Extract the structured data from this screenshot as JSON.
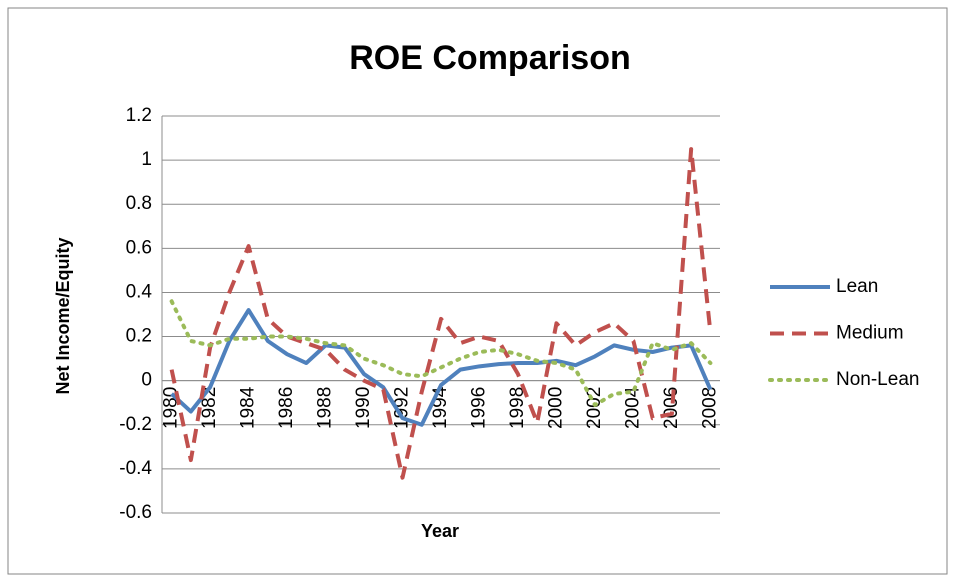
{
  "chart_data": {
    "type": "line",
    "title": "ROE Comparison",
    "x_label": "Year",
    "y_label": "Net Income/Equity",
    "categories": [
      1980,
      null,
      1982,
      null,
      1984,
      null,
      1986,
      null,
      1988,
      null,
      1990,
      null,
      1992,
      null,
      1994,
      null,
      1996,
      null,
      1998,
      null,
      2000,
      null,
      2002,
      null,
      2004,
      null,
      2006,
      null,
      2008
    ],
    "series": [
      {
        "name": "Lean",
        "color": "#4f81bd",
        "dash": "solid",
        "values": [
          -0.06,
          -0.14,
          -0.03,
          0.18,
          0.32,
          0.18,
          0.12,
          0.08,
          0.16,
          0.15,
          0.03,
          -0.03,
          -0.17,
          -0.2,
          -0.02,
          0.05,
          0.065,
          0.075,
          0.08,
          0.08,
          0.09,
          0.07,
          0.11,
          0.16,
          0.14,
          0.13,
          0.15,
          0.16,
          -0.04
        ]
      },
      {
        "name": "Medium",
        "color": "#c0504d",
        "dash": "dash",
        "values": [
          0.05,
          -0.36,
          0.15,
          0.4,
          0.61,
          0.28,
          0.2,
          0.17,
          0.14,
          0.05,
          0.0,
          -0.04,
          -0.44,
          -0.05,
          0.28,
          0.17,
          0.2,
          0.18,
          0.03,
          -0.19,
          0.26,
          0.16,
          0.22,
          0.26,
          0.18,
          -0.17,
          -0.15,
          1.05,
          0.22
        ]
      },
      {
        "name": "Non-Lean",
        "color": "#9bbb59",
        "dash": "dot",
        "values": [
          0.36,
          0.18,
          0.16,
          0.19,
          0.19,
          0.2,
          0.2,
          0.19,
          0.17,
          0.16,
          0.1,
          0.07,
          0.03,
          0.02,
          0.06,
          0.1,
          0.13,
          0.14,
          0.12,
          0.09,
          0.08,
          0.05,
          -0.11,
          -0.06,
          -0.05,
          0.17,
          0.14,
          0.17,
          0.08
        ]
      }
    ],
    "ylim": [
      -0.6,
      1.2
    ],
    "yticks": [
      -0.6,
      -0.4,
      -0.2,
      0,
      0.2,
      0.4,
      0.6,
      0.8,
      1,
      1.2
    ],
    "grid": true,
    "legend": "right"
  }
}
